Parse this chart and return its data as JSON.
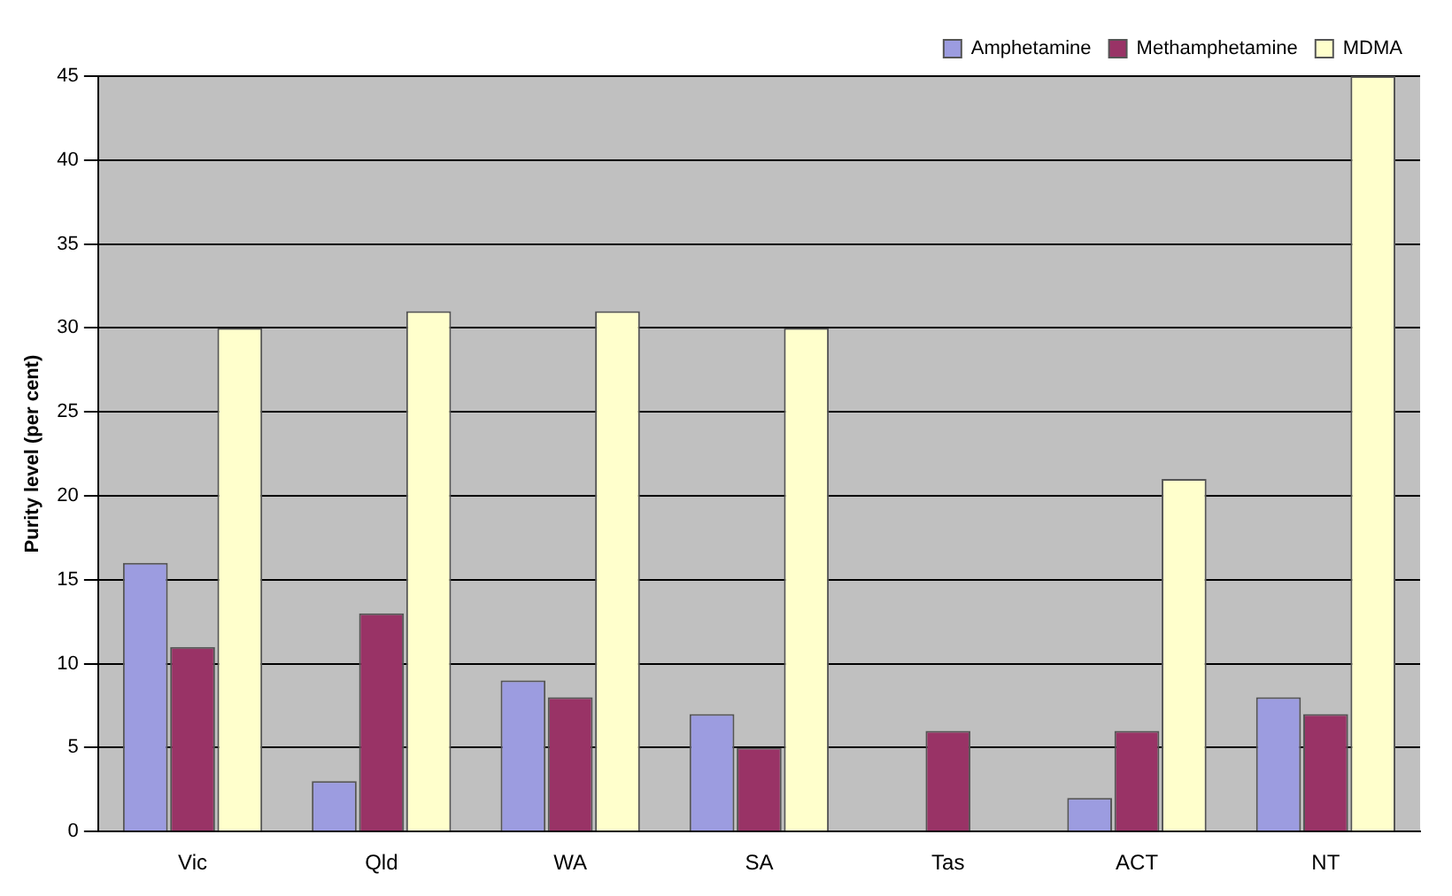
{
  "chart_data": {
    "type": "bar",
    "ylabel": "Purity level (per cent)",
    "categories": [
      "Vic",
      "Qld",
      "WA",
      "SA",
      "Tas",
      "ACT",
      "NT"
    ],
    "series": [
      {
        "name": "Amphetamine",
        "color": "#9c9ce0",
        "values": [
          16,
          3,
          9,
          7,
          null,
          2,
          8
        ]
      },
      {
        "name": "Methamphetamine",
        "color": "#993366",
        "values": [
          11,
          13,
          8,
          5,
          6,
          6,
          7
        ]
      },
      {
        "name": "MDMA",
        "color": "#ffffcc",
        "values": [
          30,
          31,
          31,
          30,
          null,
          21,
          45
        ]
      }
    ],
    "ylim": [
      0,
      45
    ],
    "yticks": [
      0,
      5,
      10,
      15,
      20,
      25,
      30,
      35,
      40,
      45
    ],
    "grid": "y",
    "legend": "top right"
  }
}
